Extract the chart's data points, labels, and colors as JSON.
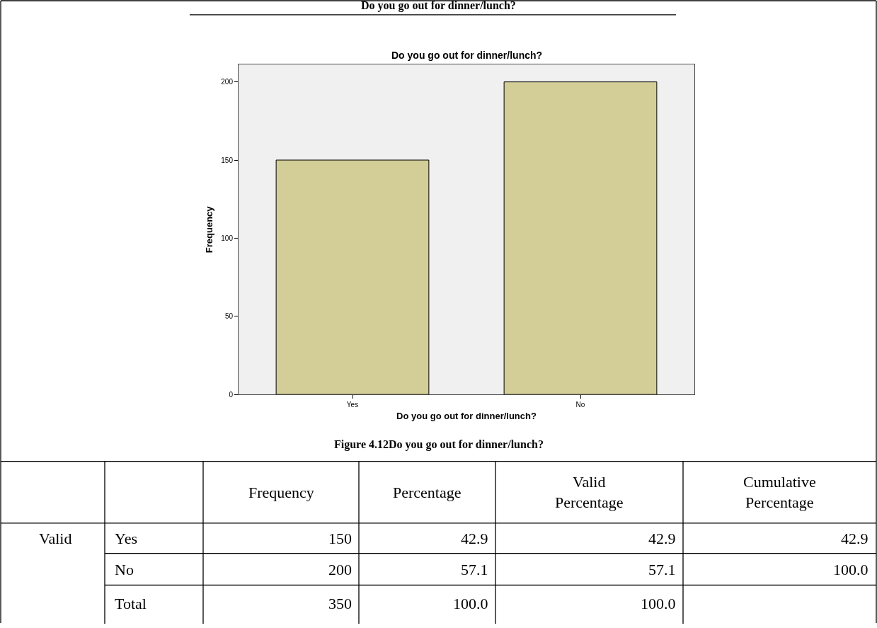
{
  "chart_data": {
    "type": "bar",
    "title": "Do you go out for dinner/lunch?",
    "subtitle": "Do you go out for dinner/lunch?",
    "xlabel": "Do you go out for dinner/lunch?",
    "ylabel": "Frequency",
    "categories": [
      "Yes",
      "No"
    ],
    "values": [
      150,
      200
    ],
    "color": "#d3ce97",
    "ylim": [
      0,
      211
    ],
    "yticks": [
      0,
      50,
      100,
      150,
      200
    ],
    "grid": false,
    "annotations": [
      "Figure 4.12Do you go out for dinner/lunch?",
      "Frequency",
      "Percentage",
      "Valid Percentage",
      "Cumulative Percentage",
      "Valid",
      "Yes",
      "150",
      "42.9",
      "42.9",
      "42.9",
      "No",
      "200",
      "57.1",
      "57.1",
      "100.0",
      "Total",
      "350",
      "100.0",
      "100.0"
    ]
  }
}
